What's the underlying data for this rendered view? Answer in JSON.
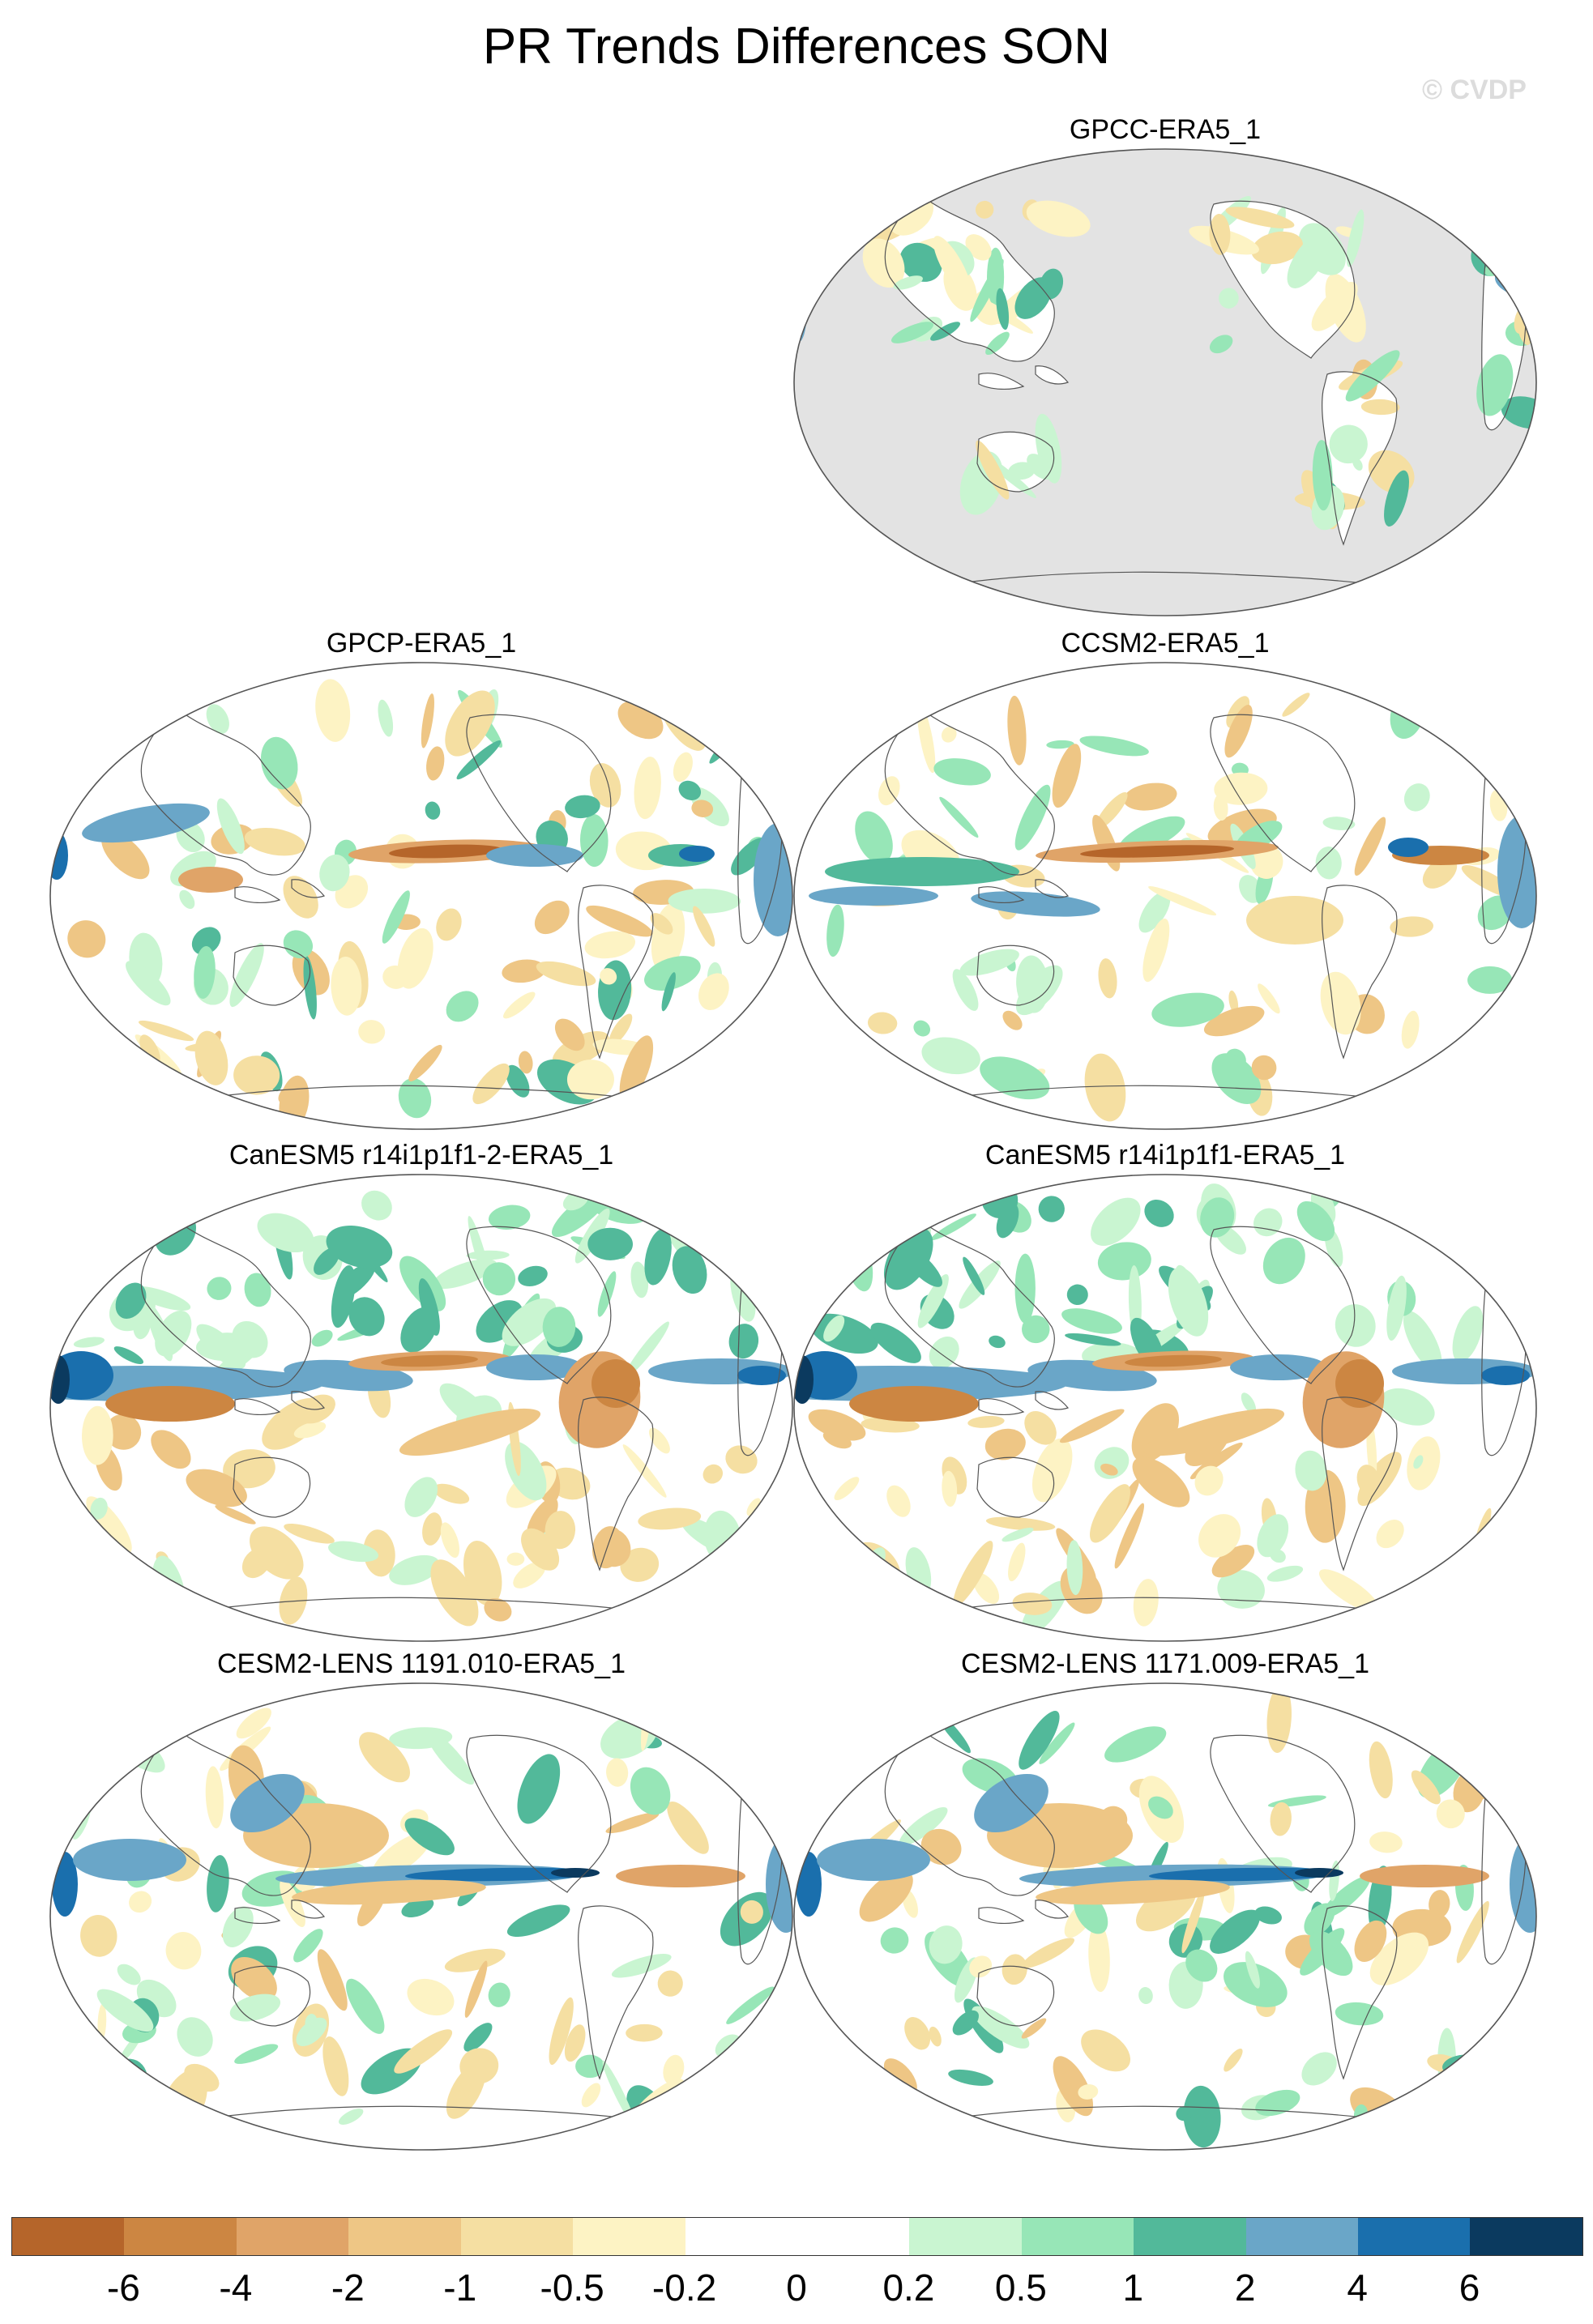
{
  "title": "PR Trends Differences SON",
  "watermark": "© CVDP",
  "panels": [
    {
      "label": "GPCC-ERA5_1",
      "type": "gpcc"
    },
    {
      "label": "GPCP-ERA5_1",
      "type": "gpcp"
    },
    {
      "label": "CCSM2-ERA5_1",
      "type": "ccsm"
    },
    {
      "label": "CanESM5 r14i1p1f1-2-ERA5_1",
      "type": "canesm"
    },
    {
      "label": "CanESM5 r14i1p1f1-ERA5_1",
      "type": "canesm"
    },
    {
      "label": "CESM2-LENS 1191.010-ERA5_1",
      "type": "cesm"
    },
    {
      "label": "CESM2-LENS 1171.009-ERA5_1",
      "type": "cesm"
    }
  ],
  "colorbar": {
    "colors": [
      "#b5652a",
      "#cc8642",
      "#e0a468",
      "#eec685",
      "#f5dfa2",
      "#fdf3c4",
      "#ffffff",
      "#ffffff",
      "#c9f5d1",
      "#97e6b7",
      "#52b99a",
      "#6aa6c8",
      "#1a6fad",
      "#0b3a5f"
    ],
    "ticks": [
      "-6",
      "-4",
      "-2",
      "-1",
      "-0.5",
      "-0.2",
      "0",
      "0.2",
      "0.5",
      "1",
      "2",
      "4",
      "6"
    ]
  }
}
